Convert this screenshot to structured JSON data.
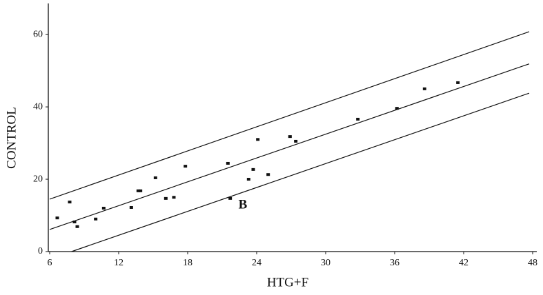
{
  "chart_data": {
    "type": "scatter",
    "x_label": "HTG+F",
    "y_label": "CONTROL",
    "annotation": "B",
    "xlim": [
      6,
      48
    ],
    "ylim": [
      0,
      68.6
    ],
    "xticks": [
      6,
      12,
      18,
      24,
      30,
      36,
      42,
      48
    ],
    "yticks": [
      0,
      20,
      40,
      60
    ],
    "color": "#111111",
    "x": [
      6.66,
      7.74,
      8.16,
      8.4,
      10.0,
      10.7,
      13.1,
      13.7,
      13.9,
      15.2,
      16.1,
      16.8,
      17.8,
      21.5,
      21.7,
      23.3,
      23.7,
      24.1,
      25.0,
      26.9,
      27.4,
      32.8,
      36.2,
      38.6,
      41.5
    ],
    "values": [
      9.3,
      13.7,
      8.2,
      6.9,
      9.0,
      12.0,
      12.2,
      16.8,
      16.8,
      20.4,
      14.7,
      15.0,
      23.6,
      24.4,
      14.7,
      20.0,
      22.7,
      31.0,
      21.3,
      31.8,
      30.5,
      36.6,
      39.6,
      45.0,
      46.7
    ],
    "lines": [
      {
        "x": [
          6,
          47.7
        ],
        "values": [
          14.5,
          60.8
        ]
      },
      {
        "x": [
          6,
          47.7
        ],
        "values": [
          6.1,
          51.9
        ]
      },
      {
        "x": [
          7.9,
          47.7
        ],
        "values": [
          0,
          43.8
        ]
      }
    ]
  }
}
